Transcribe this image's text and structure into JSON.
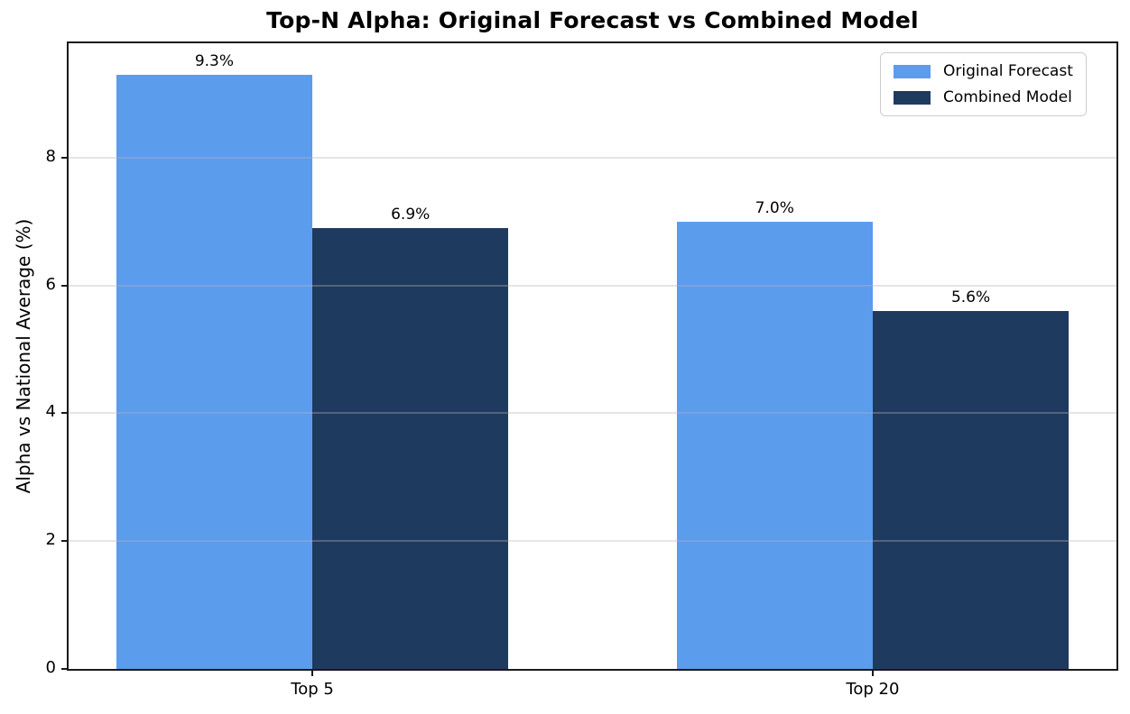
{
  "chart_data": {
    "type": "bar",
    "title": "Top-N Alpha: Original Forecast vs Combined Model",
    "ylabel": "Alpha vs National Average (%)",
    "xlabel": "",
    "categories": [
      "Top 5",
      "Top 20"
    ],
    "series": [
      {
        "name": "Original Forecast",
        "color": "#5b9ced",
        "values": [
          9.3,
          7.0
        ],
        "value_labels": [
          "9.3%",
          "7.0%"
        ]
      },
      {
        "name": "Combined Model",
        "color": "#1f3a5f",
        "values": [
          6.9,
          5.6
        ],
        "value_labels": [
          "6.9%",
          "5.6%"
        ]
      }
    ],
    "yticks": [
      0,
      2,
      4,
      6,
      8
    ],
    "ytick_labels": [
      "0",
      "2",
      "4",
      "6",
      "8"
    ],
    "ylim": [
      0,
      9.79
    ],
    "grid": true,
    "grid_axis": "y",
    "legend_position": "upper right",
    "bar_width": 0.35,
    "axis_color": "#1a1a1a",
    "grid_color": "rgba(180,180,180,0.35)"
  }
}
